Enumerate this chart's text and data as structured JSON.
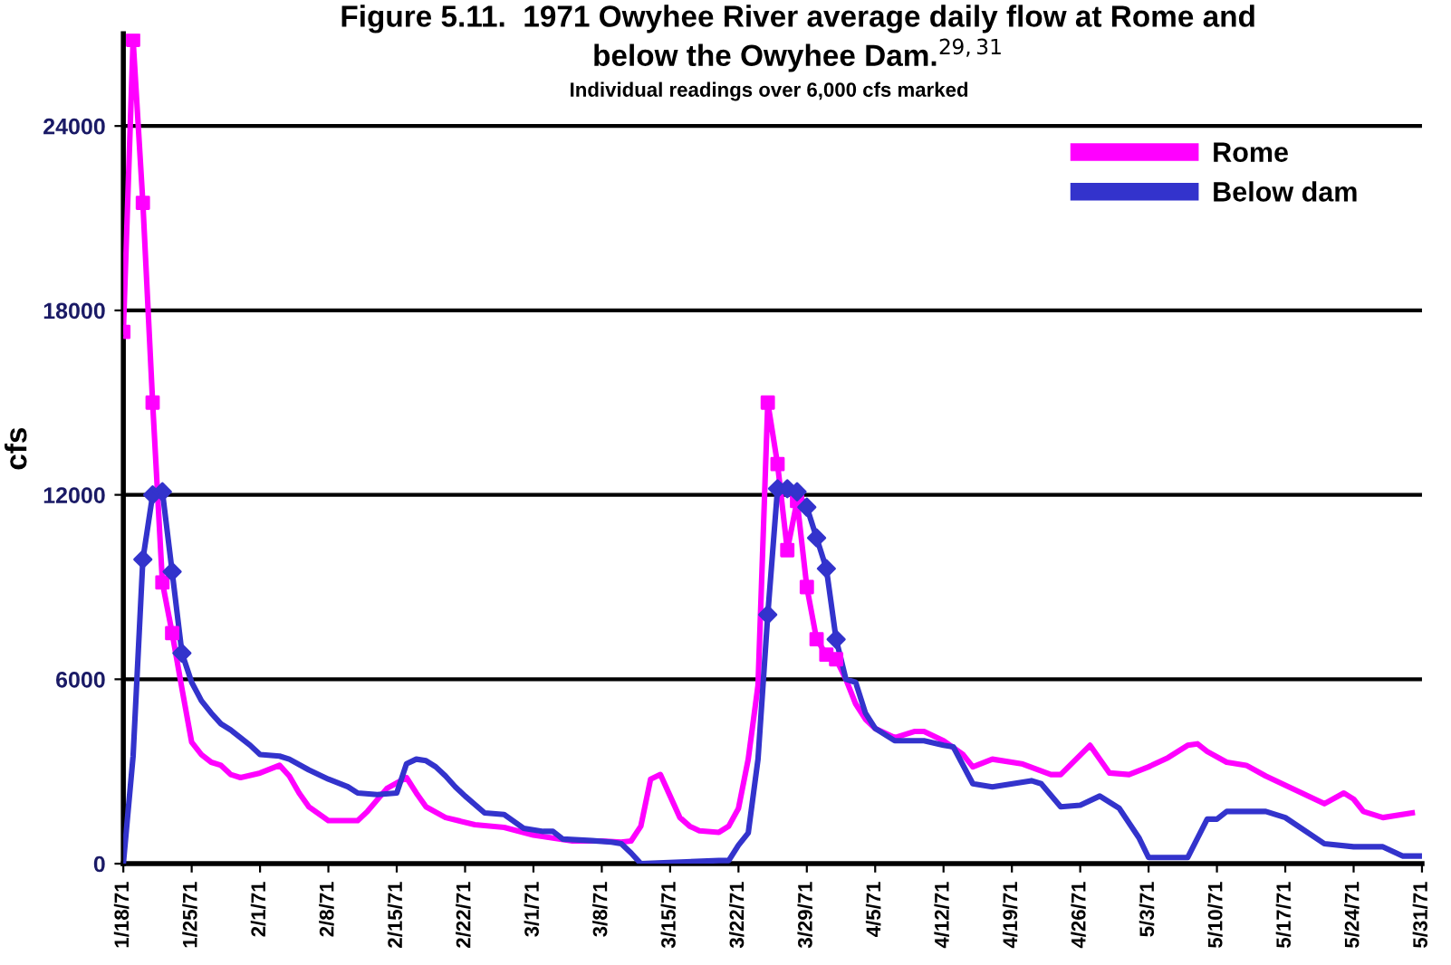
{
  "chart_data": {
    "type": "line",
    "title": "Figure 5.11.  1971 Owyhee River average daily flow at Rome and\nbelow the Owyhee Dam.$^{29,31}$",
    "subtitle": "Individual readings over 6,000 cfs marked",
    "ylabel": "cfs",
    "series": [
      {
        "name": "Rome",
        "color": "#ff00ff",
        "x": [
          "1971-01-18",
          "1971-01-19",
          "1971-01-20",
          "1971-01-21",
          "1971-01-22",
          "1971-01-23",
          "1971-01-24",
          "1971-01-25",
          "1971-01-26",
          "1971-01-27",
          "1971-01-28",
          "1971-01-29",
          "1971-01-30",
          "1971-02-01",
          "1971-02-03",
          "1971-02-04",
          "1971-02-05",
          "1971-02-06",
          "1971-02-08",
          "1971-02-11",
          "1971-02-12",
          "1971-02-14",
          "1971-02-16",
          "1971-02-17",
          "1971-02-18",
          "1971-02-20",
          "1971-02-23",
          "1971-02-26",
          "1971-03-01",
          "1971-03-05",
          "1971-03-08",
          "1971-03-10",
          "1971-03-11",
          "1971-03-12",
          "1971-03-13",
          "1971-03-14",
          "1971-03-15",
          "1971-03-16",
          "1971-03-17",
          "1971-03-18",
          "1971-03-20",
          "1971-03-21",
          "1971-03-22",
          "1971-03-23",
          "1971-03-24",
          "1971-03-25",
          "1971-03-26",
          "1971-03-27",
          "1971-03-28",
          "1971-03-29",
          "1971-03-30",
          "1971-03-31",
          "1971-04-01",
          "1971-04-02",
          "1971-04-03",
          "1971-04-04",
          "1971-04-05",
          "1971-04-07",
          "1971-04-09",
          "1971-04-10",
          "1971-04-12",
          "1971-04-14",
          "1971-04-15",
          "1971-04-17",
          "1971-04-20",
          "1971-04-23",
          "1971-04-24",
          "1971-04-27",
          "1971-04-29",
          "1971-05-01",
          "1971-05-03",
          "1971-05-05",
          "1971-05-07",
          "1971-05-08",
          "1971-05-09",
          "1971-05-11",
          "1971-05-13",
          "1971-05-15",
          "1971-05-18",
          "1971-05-21",
          "1971-05-23",
          "1971-05-24",
          "1971-05-25",
          "1971-05-27",
          "1971-05-30"
        ],
        "values": [
          17300,
          26800,
          21500,
          15000,
          9150,
          7500,
          5700,
          3950,
          3550,
          3300,
          3200,
          2900,
          2800,
          2950,
          3200,
          2850,
          2300,
          1850,
          1400,
          1400,
          1700,
          2450,
          2800,
          2300,
          1850,
          1500,
          1270,
          1180,
          930,
          740,
          740,
          700,
          740,
          1220,
          2750,
          2900,
          2200,
          1500,
          1220,
          1070,
          1020,
          1220,
          1800,
          3400,
          5800,
          15000,
          13000,
          10200,
          11800,
          9000,
          7300,
          6800,
          6650,
          6000,
          5200,
          4700,
          4400,
          4100,
          4300,
          4300,
          4000,
          3550,
          3150,
          3400,
          3250,
          2900,
          2900,
          3850,
          2950,
          2900,
          3150,
          3450,
          3850,
          3900,
          3650,
          3300,
          3200,
          2850,
          2400,
          1950,
          2300,
          2100,
          1700,
          1500,
          1650
        ]
      },
      {
        "name": "Below dam",
        "color": "#3333cc",
        "x": [
          "1971-01-18",
          "1971-01-19",
          "1971-01-20",
          "1971-01-21",
          "1971-01-22",
          "1971-01-23",
          "1971-01-24",
          "1971-01-25",
          "1971-01-26",
          "1971-01-27",
          "1971-01-28",
          "1971-01-29",
          "1971-01-31",
          "1971-02-01",
          "1971-02-03",
          "1971-02-04",
          "1971-02-06",
          "1971-02-08",
          "1971-02-10",
          "1971-02-11",
          "1971-02-13",
          "1971-02-15",
          "1971-02-16",
          "1971-02-17",
          "1971-02-18",
          "1971-02-19",
          "1971-02-20",
          "1971-02-21",
          "1971-02-22",
          "1971-02-24",
          "1971-02-26",
          "1971-02-28",
          "1971-03-02",
          "1971-03-03",
          "1971-03-04",
          "1971-03-07",
          "1971-03-09",
          "1971-03-10",
          "1971-03-11",
          "1971-03-12",
          "1971-03-20",
          "1971-03-21",
          "1971-03-22",
          "1971-03-23",
          "1971-03-24",
          "1971-03-25",
          "1971-03-26",
          "1971-03-27",
          "1971-03-28",
          "1971-03-29",
          "1971-03-30",
          "1971-03-31",
          "1971-04-01",
          "1971-04-02",
          "1971-04-03",
          "1971-04-04",
          "1971-04-05",
          "1971-04-07",
          "1971-04-10",
          "1971-04-12",
          "1971-04-13",
          "1971-04-15",
          "1971-04-17",
          "1971-04-21",
          "1971-04-22",
          "1971-04-24",
          "1971-04-26",
          "1971-04-28",
          "1971-04-30",
          "1971-05-02",
          "1971-05-03",
          "1971-05-07",
          "1971-05-09",
          "1971-05-10",
          "1971-05-11",
          "1971-05-15",
          "1971-05-17",
          "1971-05-21",
          "1971-05-24",
          "1971-05-27",
          "1971-05-29",
          "1971-05-31"
        ],
        "values": [
          0,
          3500,
          9900,
          12000,
          12100,
          9500,
          6850,
          5900,
          5300,
          4900,
          4550,
          4350,
          3850,
          3550,
          3500,
          3400,
          3050,
          2750,
          2500,
          2300,
          2250,
          2300,
          3250,
          3400,
          3350,
          3150,
          2850,
          2500,
          2200,
          1650,
          1600,
          1150,
          1050,
          1050,
          800,
          750,
          700,
          650,
          350,
          0,
          100,
          100,
          600,
          1000,
          3400,
          8100,
          12200,
          12200,
          12100,
          11600,
          10600,
          9600,
          7300,
          6000,
          5900,
          4900,
          4400,
          4000,
          4000,
          3850,
          3800,
          2600,
          2500,
          2700,
          2600,
          1850,
          1900,
          2200,
          1800,
          850,
          200,
          200,
          1450,
          1450,
          1700,
          1700,
          1500,
          650,
          550,
          550,
          250,
          250
        ]
      },
      {
        "color": "#ff00ff",
        "type": "scatter",
        "marker": "square",
        "x": [
          "1971-01-18",
          "1971-01-19",
          "1971-01-20",
          "1971-01-21",
          "1971-01-22",
          "1971-01-23",
          "1971-03-25",
          "1971-03-26",
          "1971-03-27",
          "1971-03-28",
          "1971-03-29",
          "1971-03-30",
          "1971-03-31",
          "1971-04-01"
        ],
        "values": [
          17300,
          26800,
          21500,
          15000,
          9150,
          7500,
          15000,
          13000,
          10200,
          11800,
          9000,
          7300,
          6800,
          6650
        ]
      },
      {
        "color": "#3333cc",
        "type": "scatter",
        "marker": "diamond",
        "x": [
          "1971-01-20",
          "1971-01-21",
          "1971-01-22",
          "1971-01-23",
          "1971-01-24",
          "1971-03-25",
          "1971-03-26",
          "1971-03-27",
          "1971-03-28",
          "1971-03-29",
          "1971-03-30",
          "1971-03-31",
          "1971-04-01"
        ],
        "values": [
          9900,
          12000,
          12100,
          9500,
          6850,
          8100,
          12200,
          12200,
          12100,
          11600,
          10600,
          9600,
          7300
        ]
      }
    ],
    "xlim": [
      "1971-01-18",
      "1971-05-31"
    ],
    "xticks": [
      {
        "value": "1971-01-18",
        "label": "1/18/71"
      },
      {
        "value": "1971-01-25",
        "label": "1/25/71"
      },
      {
        "value": "1971-02-01",
        "label": "2/1/71"
      },
      {
        "value": "1971-02-08",
        "label": "2/8/71"
      },
      {
        "value": "1971-02-15",
        "label": "2/15/71"
      },
      {
        "value": "1971-02-22",
        "label": "2/22/71"
      },
      {
        "value": "1971-03-01",
        "label": "3/1/71"
      },
      {
        "value": "1971-03-08",
        "label": "3/8/71"
      },
      {
        "value": "1971-03-15",
        "label": "3/15/71"
      },
      {
        "value": "1971-03-22",
        "label": "3/22/71"
      },
      {
        "value": "1971-03-29",
        "label": "3/29/71"
      },
      {
        "value": "1971-04-05",
        "label": "4/5/71"
      },
      {
        "value": "1971-04-12",
        "label": "4/12/71"
      },
      {
        "value": "1971-04-19",
        "label": "4/19/71"
      },
      {
        "value": "1971-04-26",
        "label": "4/26/71"
      },
      {
        "value": "1971-05-03",
        "label": "5/3/71"
      },
      {
        "value": "1971-05-10",
        "label": "5/10/71"
      },
      {
        "value": "1971-05-17",
        "label": "5/17/71"
      },
      {
        "value": "1971-05-24",
        "label": "5/24/71"
      },
      {
        "value": "1971-05-31",
        "label": "5/31/71"
      }
    ],
    "ylim": [
      0,
      27000
    ],
    "yticks": [
      0,
      6000,
      12000,
      18000,
      24000
    ],
    "grid": "y",
    "legend": "top right"
  }
}
